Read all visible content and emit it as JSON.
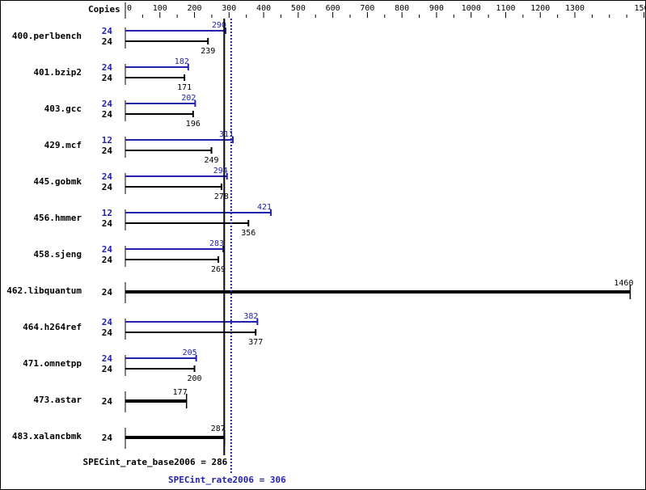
{
  "chart_data": {
    "type": "bar",
    "orientation": "horizontal",
    "copies_header": "Copies",
    "x_ticks": [
      0,
      100,
      200,
      300,
      400,
      500,
      600,
      700,
      800,
      900,
      1000,
      1100,
      1200,
      1300,
      1500
    ],
    "xlim": [
      0,
      1500
    ],
    "colors": {
      "base": "#000000",
      "peak": "#2222aa"
    },
    "categories": [
      "400.perlbench",
      "401.bzip2",
      "403.gcc",
      "429.mcf",
      "445.gobmk",
      "456.hmmer",
      "458.sjeng",
      "462.libquantum",
      "464.h264ref",
      "471.omnetpp",
      "473.astar",
      "483.xalancbmk"
    ],
    "series": [
      {
        "name": "base",
        "copies": [
          24,
          24,
          24,
          24,
          24,
          24,
          24,
          24,
          24,
          24,
          24,
          24
        ],
        "values": [
          239,
          171,
          196,
          249,
          278,
          356,
          269,
          1460,
          377,
          200,
          177,
          287
        ]
      },
      {
        "name": "peak",
        "copies": [
          24,
          24,
          24,
          12,
          24,
          12,
          24,
          null,
          24,
          24,
          null,
          null
        ],
        "values": [
          290,
          182,
          202,
          311,
          294,
          421,
          283,
          null,
          382,
          205,
          null,
          null
        ]
      }
    ],
    "reference_lines": [
      {
        "label": "SPECint_rate_base2006 = 286",
        "value": 286,
        "style": "solid",
        "color": "#000000"
      },
      {
        "label": "SPECint_rate2006 = 306",
        "value": 306,
        "style": "dotted",
        "color": "#2222aa"
      }
    ]
  }
}
